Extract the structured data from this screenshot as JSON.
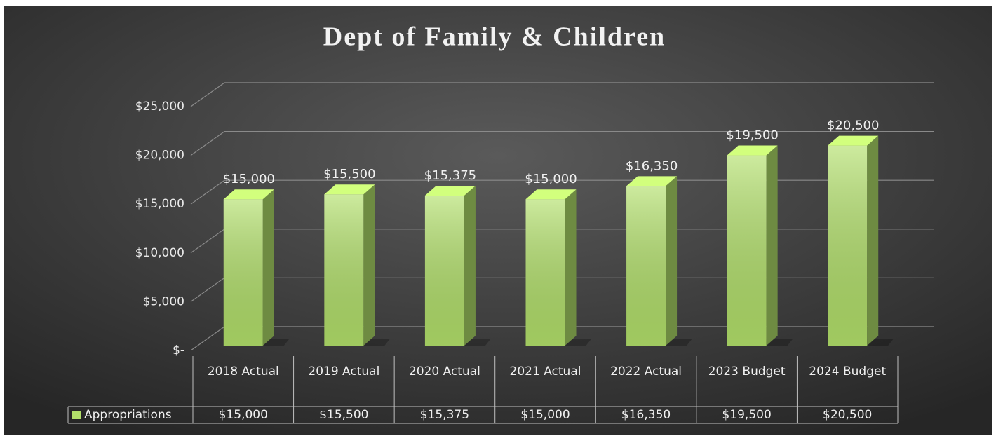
{
  "chart_data": {
    "type": "bar3d",
    "title": "Dept of Family & Children",
    "categories": [
      "2018 Actual",
      "2019 Actual",
      "2020 Actual",
      "2021 Actual",
      "2022 Actual",
      "2023 Budget",
      "2024 Budget"
    ],
    "series": [
      {
        "name": "Appropriations",
        "color": "#b2e06a",
        "values": [
          15000,
          15500,
          15375,
          15000,
          16350,
          19500,
          20500
        ],
        "value_labels": [
          "$15,000",
          "$15,500",
          "$15,375",
          "$15,000",
          "$16,350",
          "$19,500",
          "$20,500"
        ]
      }
    ],
    "ylim": [
      0,
      25000
    ],
    "yticks": [
      {
        "value": 0,
        "label": "$-"
      },
      {
        "value": 5000,
        "label": "$5,000"
      },
      {
        "value": 10000,
        "label": "$10,000"
      },
      {
        "value": 15000,
        "label": "$15,000"
      },
      {
        "value": 20000,
        "label": "$20,000"
      },
      {
        "value": 25000,
        "label": "$25,000"
      }
    ],
    "grid": true,
    "data_table": true
  }
}
